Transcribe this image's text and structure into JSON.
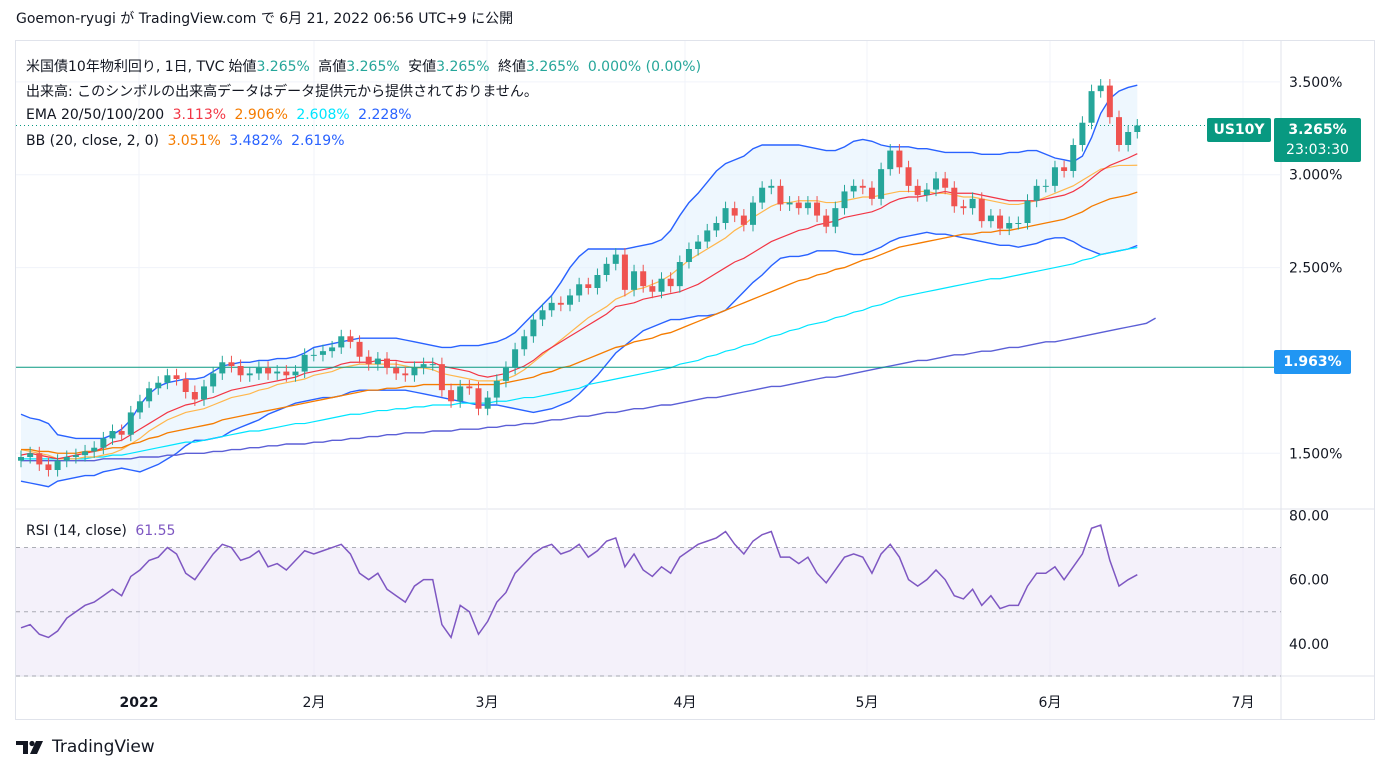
{
  "header": {
    "caption": "Goemon-ryugi が TradingView.com で 6月 21, 2022 06:56 UTC+9 に公開"
  },
  "legend": {
    "line1": {
      "name": "米国債10年物利回り, 1日, TVC",
      "open_label": "始値",
      "open": "3.265%",
      "high_label": "高値",
      "high": "3.265%",
      "low_label": "安値",
      "low": "3.265%",
      "close_label": "終値",
      "close": "3.265%",
      "change": "0.000% (0.00%)"
    },
    "line2": "出来高: このシンボルの出来高データはデータ提供元から提供されておりません。",
    "ema": {
      "label": "EMA 20/50/100/200",
      "v20": "3.113%",
      "v50": "2.906%",
      "v100": "2.608%",
      "v200": "2.228%"
    },
    "bb": {
      "label": "BB (20, close, 2, 0)",
      "basis": "3.051%",
      "upper": "3.482%",
      "lower": "2.619%"
    },
    "rsi": {
      "label": "RSI (14, close)",
      "value": "61.55"
    }
  },
  "price_badge": {
    "ticker": "US10Y",
    "price": "3.265%",
    "countdown": "23:03:30"
  },
  "level_badge": {
    "value": "1.963%"
  },
  "colors": {
    "up": "#26a69a",
    "down": "#ef5350",
    "ema20": "#f23645",
    "ema50": "#f57c00",
    "ema100": "#ffb74d",
    "ema200": "#00e5ff",
    "ema200_alt": "#2962ff",
    "bb": "#2962ff",
    "bb_fill": "#e3f2fd",
    "rsi": "#7e57c2",
    "rsi_fill": "#ede7f6",
    "level_line": "#089981",
    "badge_blue": "#2196f3"
  },
  "footer": {
    "brand": "TradingView",
    "logo_icon": "tradingview-logo-icon"
  },
  "chart_data": {
    "type": "candlestick",
    "title": "米国債10年物利回り",
    "x_tick_labels": [
      "2022",
      "2月",
      "3月",
      "4月",
      "5月",
      "6月",
      "7月"
    ],
    "price_axis_labels": [
      "3.500%",
      "3.000%",
      "2.500%",
      "1.500%"
    ],
    "price_range": [
      1.2,
      3.72
    ],
    "level_line": 1.963,
    "rsi_axis_labels": [
      "80.00",
      "60.00",
      "40.00"
    ],
    "rsi_range": [
      30,
      82
    ],
    "rsi_bands": [
      70,
      50,
      30
    ],
    "closes": [
      1.48,
      1.5,
      1.44,
      1.41,
      1.46,
      1.48,
      1.49,
      1.51,
      1.53,
      1.58,
      1.62,
      1.6,
      1.72,
      1.78,
      1.85,
      1.88,
      1.92,
      1.9,
      1.83,
      1.79,
      1.86,
      1.93,
      1.99,
      1.97,
      1.92,
      1.93,
      1.96,
      1.93,
      1.94,
      1.92,
      1.94,
      2.03,
      2.03,
      2.05,
      2.07,
      2.13,
      2.1,
      2.02,
      1.98,
      2.01,
      1.96,
      1.93,
      1.92,
      1.96,
      1.98,
      1.98,
      1.84,
      1.78,
      1.86,
      1.85,
      1.74,
      1.8,
      1.89,
      1.96,
      2.06,
      2.13,
      2.22,
      2.27,
      2.31,
      2.3,
      2.35,
      2.41,
      2.39,
      2.46,
      2.52,
      2.57,
      2.38,
      2.48,
      2.4,
      2.37,
      2.44,
      2.4,
      2.53,
      2.6,
      2.64,
      2.7,
      2.74,
      2.82,
      2.78,
      2.73,
      2.85,
      2.93,
      2.94,
      2.84,
      2.85,
      2.82,
      2.85,
      2.78,
      2.72,
      2.82,
      2.91,
      2.94,
      2.93,
      2.87,
      3.03,
      3.13,
      3.04,
      2.94,
      2.89,
      2.92,
      2.98,
      2.93,
      2.83,
      2.82,
      2.87,
      2.75,
      2.78,
      2.71,
      2.74,
      2.74,
      2.86,
      2.94,
      2.94,
      3.04,
      3.02,
      3.16,
      3.28,
      3.45,
      3.48,
      3.31,
      3.16,
      3.23,
      3.265
    ],
    "ema20": [
      1.49,
      1.5,
      1.49,
      1.48,
      1.47,
      1.48,
      1.49,
      1.5,
      1.51,
      1.53,
      1.56,
      1.57,
      1.6,
      1.63,
      1.66,
      1.69,
      1.72,
      1.74,
      1.76,
      1.77,
      1.79,
      1.8,
      1.82,
      1.84,
      1.85,
      1.86,
      1.87,
      1.88,
      1.89,
      1.9,
      1.91,
      1.93,
      1.94,
      1.95,
      1.96,
      1.98,
      1.99,
      1.99,
      1.99,
      2.0,
      2.0,
      2.0,
      1.99,
      1.99,
      1.99,
      1.99,
      1.97,
      1.96,
      1.95,
      1.94,
      1.92,
      1.91,
      1.92,
      1.93,
      1.95,
      1.97,
      2.0,
      2.04,
      2.07,
      2.1,
      2.13,
      2.16,
      2.19,
      2.22,
      2.25,
      2.29,
      2.3,
      2.31,
      2.33,
      2.34,
      2.35,
      2.36,
      2.37,
      2.39,
      2.41,
      2.44,
      2.47,
      2.5,
      2.53,
      2.55,
      2.58,
      2.61,
      2.64,
      2.66,
      2.68,
      2.7,
      2.71,
      2.73,
      2.74,
      2.75,
      2.77,
      2.78,
      2.79,
      2.8,
      2.82,
      2.85,
      2.87,
      2.88,
      2.88,
      2.89,
      2.9,
      2.91,
      2.9,
      2.9,
      2.9,
      2.89,
      2.88,
      2.87,
      2.86,
      2.86,
      2.86,
      2.86,
      2.87,
      2.88,
      2.89,
      2.91,
      2.94,
      2.98,
      3.02,
      3.05,
      3.07,
      3.09,
      3.113
    ],
    "ema50": [
      1.52,
      1.52,
      1.51,
      1.51,
      1.5,
      1.5,
      1.5,
      1.51,
      1.51,
      1.52,
      1.53,
      1.53,
      1.55,
      1.56,
      1.58,
      1.59,
      1.61,
      1.62,
      1.63,
      1.64,
      1.65,
      1.66,
      1.68,
      1.69,
      1.7,
      1.71,
      1.72,
      1.73,
      1.74,
      1.75,
      1.76,
      1.77,
      1.78,
      1.79,
      1.8,
      1.81,
      1.82,
      1.83,
      1.84,
      1.84,
      1.85,
      1.85,
      1.86,
      1.86,
      1.87,
      1.87,
      1.87,
      1.87,
      1.87,
      1.87,
      1.87,
      1.87,
      1.87,
      1.88,
      1.89,
      1.9,
      1.91,
      1.93,
      1.94,
      1.96,
      1.97,
      1.99,
      2.01,
      2.03,
      2.05,
      2.07,
      2.08,
      2.1,
      2.11,
      2.12,
      2.14,
      2.15,
      2.17,
      2.19,
      2.21,
      2.23,
      2.25,
      2.27,
      2.29,
      2.31,
      2.33,
      2.35,
      2.37,
      2.39,
      2.41,
      2.43,
      2.44,
      2.46,
      2.47,
      2.49,
      2.5,
      2.52,
      2.54,
      2.55,
      2.57,
      2.59,
      2.61,
      2.62,
      2.63,
      2.64,
      2.65,
      2.66,
      2.67,
      2.68,
      2.68,
      2.69,
      2.69,
      2.7,
      2.7,
      2.71,
      2.72,
      2.73,
      2.74,
      2.75,
      2.76,
      2.78,
      2.8,
      2.83,
      2.85,
      2.87,
      2.88,
      2.89,
      2.906
    ],
    "ema100": [
      1.47,
      1.47,
      1.47,
      1.47,
      1.47,
      1.47,
      1.47,
      1.47,
      1.48,
      1.48,
      1.49,
      1.49,
      1.5,
      1.51,
      1.52,
      1.53,
      1.54,
      1.55,
      1.56,
      1.56,
      1.57,
      1.58,
      1.59,
      1.6,
      1.61,
      1.62,
      1.62,
      1.63,
      1.64,
      1.65,
      1.66,
      1.66,
      1.67,
      1.68,
      1.69,
      1.7,
      1.71,
      1.71,
      1.72,
      1.73,
      1.73,
      1.74,
      1.74,
      1.75,
      1.75,
      1.76,
      1.76,
      1.76,
      1.77,
      1.77,
      1.77,
      1.77,
      1.78,
      1.78,
      1.79,
      1.8,
      1.8,
      1.81,
      1.82,
      1.83,
      1.84,
      1.85,
      1.87,
      1.88,
      1.89,
      1.9,
      1.91,
      1.92,
      1.93,
      1.94,
      1.95,
      1.96,
      1.98,
      1.99,
      2.0,
      2.02,
      2.03,
      2.05,
      2.06,
      2.08,
      2.09,
      2.11,
      2.13,
      2.14,
      2.16,
      2.17,
      2.19,
      2.2,
      2.21,
      2.23,
      2.24,
      2.26,
      2.27,
      2.29,
      2.3,
      2.32,
      2.34,
      2.35,
      2.36,
      2.37,
      2.38,
      2.39,
      2.4,
      2.41,
      2.42,
      2.43,
      2.44,
      2.44,
      2.45,
      2.46,
      2.47,
      2.48,
      2.49,
      2.5,
      2.51,
      2.52,
      2.54,
      2.55,
      2.57,
      2.58,
      2.59,
      2.6,
      2.608
    ],
    "ema200": [
      1.46,
      1.46,
      1.46,
      1.46,
      1.46,
      1.46,
      1.46,
      1.46,
      1.46,
      1.47,
      1.47,
      1.47,
      1.47,
      1.48,
      1.48,
      1.48,
      1.49,
      1.49,
      1.5,
      1.5,
      1.5,
      1.51,
      1.51,
      1.52,
      1.52,
      1.53,
      1.53,
      1.54,
      1.54,
      1.55,
      1.55,
      1.55,
      1.56,
      1.56,
      1.57,
      1.57,
      1.58,
      1.58,
      1.59,
      1.59,
      1.6,
      1.6,
      1.61,
      1.61,
      1.61,
      1.62,
      1.62,
      1.62,
      1.63,
      1.63,
      1.63,
      1.64,
      1.64,
      1.65,
      1.65,
      1.66,
      1.66,
      1.67,
      1.68,
      1.68,
      1.69,
      1.7,
      1.7,
      1.71,
      1.72,
      1.72,
      1.73,
      1.74,
      1.74,
      1.75,
      1.76,
      1.76,
      1.77,
      1.78,
      1.79,
      1.8,
      1.8,
      1.81,
      1.82,
      1.83,
      1.84,
      1.85,
      1.86,
      1.86,
      1.87,
      1.88,
      1.89,
      1.9,
      1.91,
      1.91,
      1.92,
      1.93,
      1.94,
      1.95,
      1.96,
      1.97,
      1.98,
      1.99,
      2.0,
      2.0,
      2.01,
      2.02,
      2.03,
      2.03,
      2.04,
      2.05,
      2.05,
      2.06,
      2.07,
      2.07,
      2.08,
      2.09,
      2.1,
      2.1,
      2.11,
      2.12,
      2.13,
      2.14,
      2.15,
      2.16,
      2.17,
      2.18,
      2.19,
      2.2,
      2.228
    ],
    "bb_upper": [
      1.71,
      1.69,
      1.68,
      1.66,
      1.6,
      1.59,
      1.58,
      1.58,
      1.58,
      1.58,
      1.6,
      1.63,
      1.68,
      1.76,
      1.82,
      1.86,
      1.88,
      1.89,
      1.9,
      1.9,
      1.91,
      1.94,
      1.97,
      1.98,
      1.99,
      1.99,
      2.0,
      2.0,
      2.01,
      2.01,
      2.02,
      2.04,
      2.07,
      2.08,
      2.09,
      2.1,
      2.11,
      2.12,
      2.12,
      2.12,
      2.12,
      2.12,
      2.11,
      2.1,
      2.09,
      2.08,
      2.07,
      2.07,
      2.08,
      2.08,
      2.08,
      2.09,
      2.1,
      2.12,
      2.15,
      2.2,
      2.25,
      2.3,
      2.35,
      2.42,
      2.5,
      2.56,
      2.6,
      2.6,
      2.6,
      2.6,
      2.6,
      2.61,
      2.62,
      2.63,
      2.65,
      2.7,
      2.78,
      2.85,
      2.9,
      2.96,
      3.02,
      3.06,
      3.08,
      3.1,
      3.14,
      3.16,
      3.16,
      3.16,
      3.16,
      3.16,
      3.15,
      3.14,
      3.13,
      3.13,
      3.15,
      3.18,
      3.19,
      3.18,
      3.16,
      3.15,
      3.15,
      3.15,
      3.14,
      3.14,
      3.13,
      3.12,
      3.12,
      3.12,
      3.12,
      3.11,
      3.11,
      3.11,
      3.12,
      3.12,
      3.13,
      3.13,
      3.11,
      3.09,
      3.08,
      3.07,
      3.1,
      3.2,
      3.33,
      3.41,
      3.45,
      3.47,
      3.482
    ],
    "bb_basis": [
      1.52,
      1.51,
      1.5,
      1.49,
      1.47,
      1.47,
      1.47,
      1.48,
      1.48,
      1.49,
      1.5,
      1.52,
      1.55,
      1.58,
      1.62,
      1.65,
      1.68,
      1.7,
      1.72,
      1.73,
      1.74,
      1.76,
      1.78,
      1.8,
      1.81,
      1.82,
      1.84,
      1.85,
      1.87,
      1.88,
      1.89,
      1.9,
      1.92,
      1.93,
      1.94,
      1.96,
      1.97,
      1.98,
      1.98,
      1.98,
      1.98,
      1.98,
      1.97,
      1.96,
      1.96,
      1.95,
      1.93,
      1.92,
      1.91,
      1.9,
      1.89,
      1.89,
      1.89,
      1.9,
      1.92,
      1.95,
      1.99,
      2.03,
      2.07,
      2.11,
      2.15,
      2.19,
      2.23,
      2.26,
      2.29,
      2.33,
      2.35,
      2.38,
      2.39,
      2.41,
      2.43,
      2.46,
      2.5,
      2.54,
      2.57,
      2.6,
      2.63,
      2.66,
      2.7,
      2.73,
      2.77,
      2.8,
      2.83,
      2.85,
      2.85,
      2.86,
      2.86,
      2.86,
      2.85,
      2.85,
      2.86,
      2.87,
      2.88,
      2.88,
      2.89,
      2.9,
      2.91,
      2.91,
      2.91,
      2.91,
      2.9,
      2.9,
      2.89,
      2.88,
      2.88,
      2.87,
      2.86,
      2.85,
      2.84,
      2.84,
      2.85,
      2.86,
      2.88,
      2.9,
      2.92,
      2.94,
      2.97,
      3.0,
      3.03,
      3.04,
      3.05,
      3.05,
      3.051
    ],
    "bb_lower": [
      1.35,
      1.34,
      1.33,
      1.32,
      1.35,
      1.36,
      1.37,
      1.38,
      1.38,
      1.4,
      1.41,
      1.42,
      1.41,
      1.4,
      1.42,
      1.44,
      1.47,
      1.5,
      1.54,
      1.57,
      1.57,
      1.58,
      1.59,
      1.62,
      1.64,
      1.66,
      1.68,
      1.71,
      1.73,
      1.75,
      1.77,
      1.78,
      1.79,
      1.8,
      1.8,
      1.81,
      1.83,
      1.84,
      1.84,
      1.84,
      1.84,
      1.84,
      1.84,
      1.83,
      1.82,
      1.81,
      1.8,
      1.79,
      1.78,
      1.77,
      1.76,
      1.76,
      1.76,
      1.75,
      1.74,
      1.73,
      1.72,
      1.73,
      1.74,
      1.76,
      1.78,
      1.82,
      1.87,
      1.92,
      1.98,
      2.04,
      2.08,
      2.12,
      2.16,
      2.18,
      2.2,
      2.22,
      2.22,
      2.23,
      2.24,
      2.24,
      2.25,
      2.27,
      2.32,
      2.37,
      2.42,
      2.46,
      2.51,
      2.55,
      2.56,
      2.56,
      2.57,
      2.59,
      2.59,
      2.59,
      2.58,
      2.57,
      2.57,
      2.59,
      2.61,
      2.64,
      2.66,
      2.67,
      2.68,
      2.69,
      2.68,
      2.68,
      2.67,
      2.66,
      2.65,
      2.64,
      2.63,
      2.62,
      2.62,
      2.61,
      2.62,
      2.63,
      2.65,
      2.66,
      2.66,
      2.64,
      2.61,
      2.59,
      2.57,
      2.58,
      2.59,
      2.6,
      2.619
    ],
    "rsi": [
      45,
      46,
      43,
      42,
      44,
      48,
      50,
      52,
      53,
      55,
      57,
      55,
      61,
      63,
      66,
      67,
      70,
      68,
      62,
      60,
      64,
      68,
      71,
      70,
      66,
      67,
      69,
      64,
      65,
      63,
      66,
      69,
      68,
      69,
      70,
      71,
      68,
      62,
      60,
      62,
      57,
      55,
      53,
      58,
      60,
      60,
      46,
      42,
      52,
      50,
      43,
      47,
      53,
      56,
      62,
      65,
      68,
      70,
      71,
      68,
      69,
      71,
      67,
      69,
      72,
      73,
      64,
      68,
      63,
      61,
      64,
      62,
      67,
      69,
      71,
      72,
      73,
      75,
      71,
      68,
      72,
      74,
      75,
      67,
      67,
      65,
      67,
      62,
      59,
      63,
      67,
      68,
      67,
      62,
      68,
      71,
      67,
      60,
      58,
      60,
      63,
      60,
      55,
      54,
      57,
      52,
      55,
      51,
      52,
      52,
      58,
      62,
      62,
      64,
      60,
      64,
      68,
      76,
      77,
      66,
      58,
      60,
      61.55
    ]
  }
}
